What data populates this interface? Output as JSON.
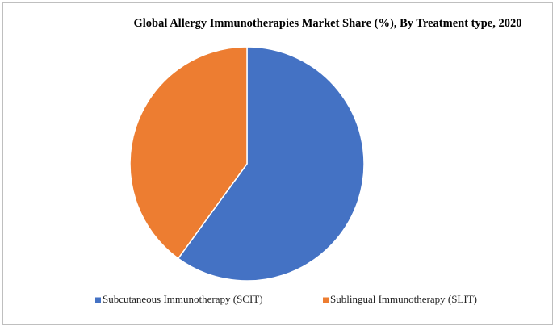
{
  "chart_data": {
    "type": "pie",
    "title": "Global Allergy Immunotherapies Market Share (%), By Treatment type, 2020",
    "categories": [
      "Subcutaneous Immunotherapy (SCIT)",
      "Sublingual Immunotherapy (SLIT)"
    ],
    "values": [
      60,
      40
    ],
    "colors": [
      "#4472c4",
      "#ed7d31"
    ],
    "legend": "bottom"
  }
}
